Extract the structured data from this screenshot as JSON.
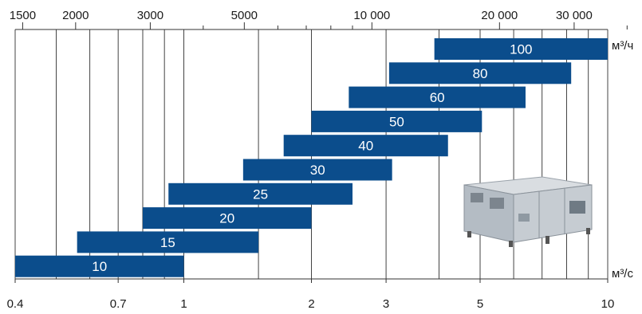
{
  "chart_data": {
    "type": "bar",
    "orientation": "horizontal-range",
    "x_scale": "log",
    "x_range": [
      0.4,
      10
    ],
    "x_unit_bottom": "м³/с",
    "x_unit_top": "м³/ч",
    "bottom_ticks": [
      {
        "value": 0.4,
        "label": "0.4"
      },
      {
        "value": 0.7,
        "label": "0.7"
      },
      {
        "value": 1,
        "label": "1"
      },
      {
        "value": 2,
        "label": "2"
      },
      {
        "value": 3,
        "label": "3"
      },
      {
        "value": 5,
        "label": "5"
      },
      {
        "value": 10,
        "label": "10"
      }
    ],
    "top_ticks": [
      {
        "value": 1500,
        "label": "1500"
      },
      {
        "value": 2000,
        "label": "2000"
      },
      {
        "value": 3000,
        "label": "3000"
      },
      {
        "value": 5000,
        "label": "5000"
      },
      {
        "value": 10000,
        "label": "10 000"
      },
      {
        "value": 20000,
        "label": "20 000"
      },
      {
        "value": 30000,
        "label": "30 000"
      }
    ],
    "gridlines": [
      0.4,
      0.5,
      0.6,
      0.7,
      0.8,
      0.9,
      1,
      1.5,
      2,
      3,
      4,
      5,
      6,
      7,
      8,
      9,
      10
    ],
    "top_minor_ticks": [
      4000,
      6000,
      7000,
      8000,
      9000,
      40000
    ],
    "grid": true,
    "bar_color": "#0b4d8c",
    "bars": [
      {
        "label": "100",
        "from": 3.9,
        "to": 10
      },
      {
        "label": "80",
        "from": 3.05,
        "to": 8.2
      },
      {
        "label": "60",
        "from": 2.45,
        "to": 6.4
      },
      {
        "label": "50",
        "from": 2.0,
        "to": 5.05
      },
      {
        "label": "40",
        "from": 1.72,
        "to": 4.2
      },
      {
        "label": "30",
        "from": 1.38,
        "to": 3.1
      },
      {
        "label": "25",
        "from": 0.92,
        "to": 2.5
      },
      {
        "label": "20",
        "from": 0.8,
        "to": 2.0
      },
      {
        "label": "15",
        "from": 0.56,
        "to": 1.5
      },
      {
        "label": "10",
        "from": 0.4,
        "to": 1.0
      }
    ]
  },
  "product_image": {
    "icon": "air-handling-unit-icon"
  }
}
